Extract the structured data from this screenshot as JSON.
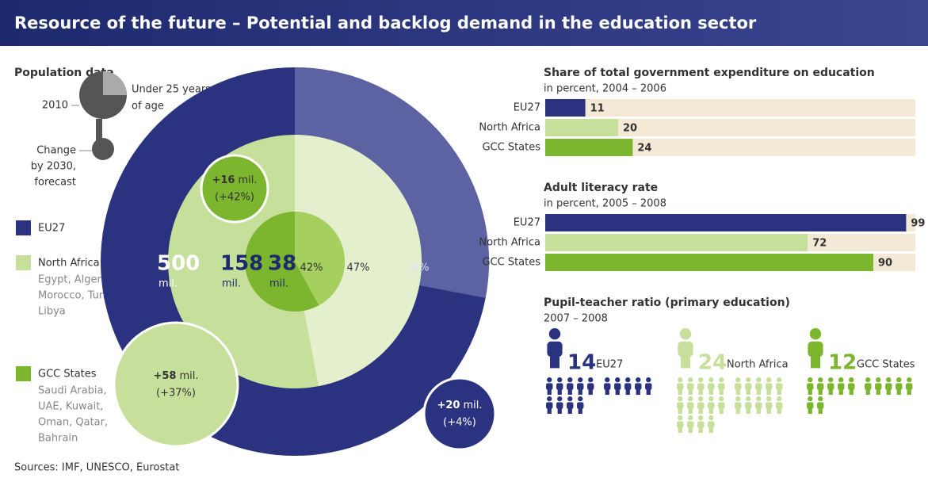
{
  "title": "Resource of the future – Potential and backlog demand in the education sector",
  "population": {
    "heading": "Population data",
    "key": {
      "year": "2010",
      "under25": [
        "Under 25 years",
        "of age"
      ],
      "change": [
        "Change",
        "by 2030,",
        "forecast"
      ]
    },
    "unit": "mil.",
    "regions": [
      {
        "name": "EU27",
        "color": "#2b3381",
        "light_color": "#5c62a2",
        "population": 500,
        "under25_share": {
          "value": 28,
          "label": "28%"
        },
        "change": {
          "value": 20,
          "label": "+20"
        },
        "change_pct": {
          "value": 4,
          "label": "(+4%)"
        },
        "description": []
      },
      {
        "name": "North Africa",
        "color": "#c6e09c",
        "light_color": "#e4f0cd",
        "population": 158,
        "under25_share": {
          "value": 47,
          "label": "47%"
        },
        "change": {
          "value": 58,
          "label": "+58"
        },
        "change_pct": {
          "value": 37,
          "label": "(+37%)"
        },
        "description": [
          "Egypt, Algeria,",
          "Morocco, Tunisia,",
          "Libya"
        ]
      },
      {
        "name": "GCC States",
        "color": "#7cb52e",
        "light_color": "#a5cf5f",
        "population": 38,
        "under25_share": {
          "value": 42,
          "label": "42%"
        },
        "change": {
          "value": 16,
          "label": "+16"
        },
        "change_pct": {
          "value": 42,
          "label": "(+42%)"
        },
        "description": [
          "Saudi Arabia,",
          "UAE, Kuwait,",
          "Oman, Qatar,",
          "Bahrain"
        ]
      }
    ]
  },
  "expenditure": {
    "title": "Share of total government expenditure on education",
    "subtitle": "in percent, 2004 – 2006",
    "categories": [
      "EU27",
      "North Africa",
      "GCC States"
    ],
    "values": [
      11,
      20,
      24
    ],
    "xlim": [
      0,
      100
    ]
  },
  "literacy": {
    "title": "Adult literacy rate",
    "subtitle": "in percent, 2005 – 2008",
    "categories": [
      "EU27",
      "North Africa",
      "GCC States"
    ],
    "values": [
      99,
      72,
      90
    ],
    "xlim": [
      0,
      100
    ]
  },
  "pupil_teacher": {
    "title": "Pupil-teacher ratio (primary education)",
    "subtitle": "2007 – 2008",
    "categories": [
      "EU27",
      "North Africa",
      "GCC States"
    ],
    "values": [
      14,
      24,
      12
    ]
  },
  "source": "Sources: IMF, UNESCO, Eurostat"
}
